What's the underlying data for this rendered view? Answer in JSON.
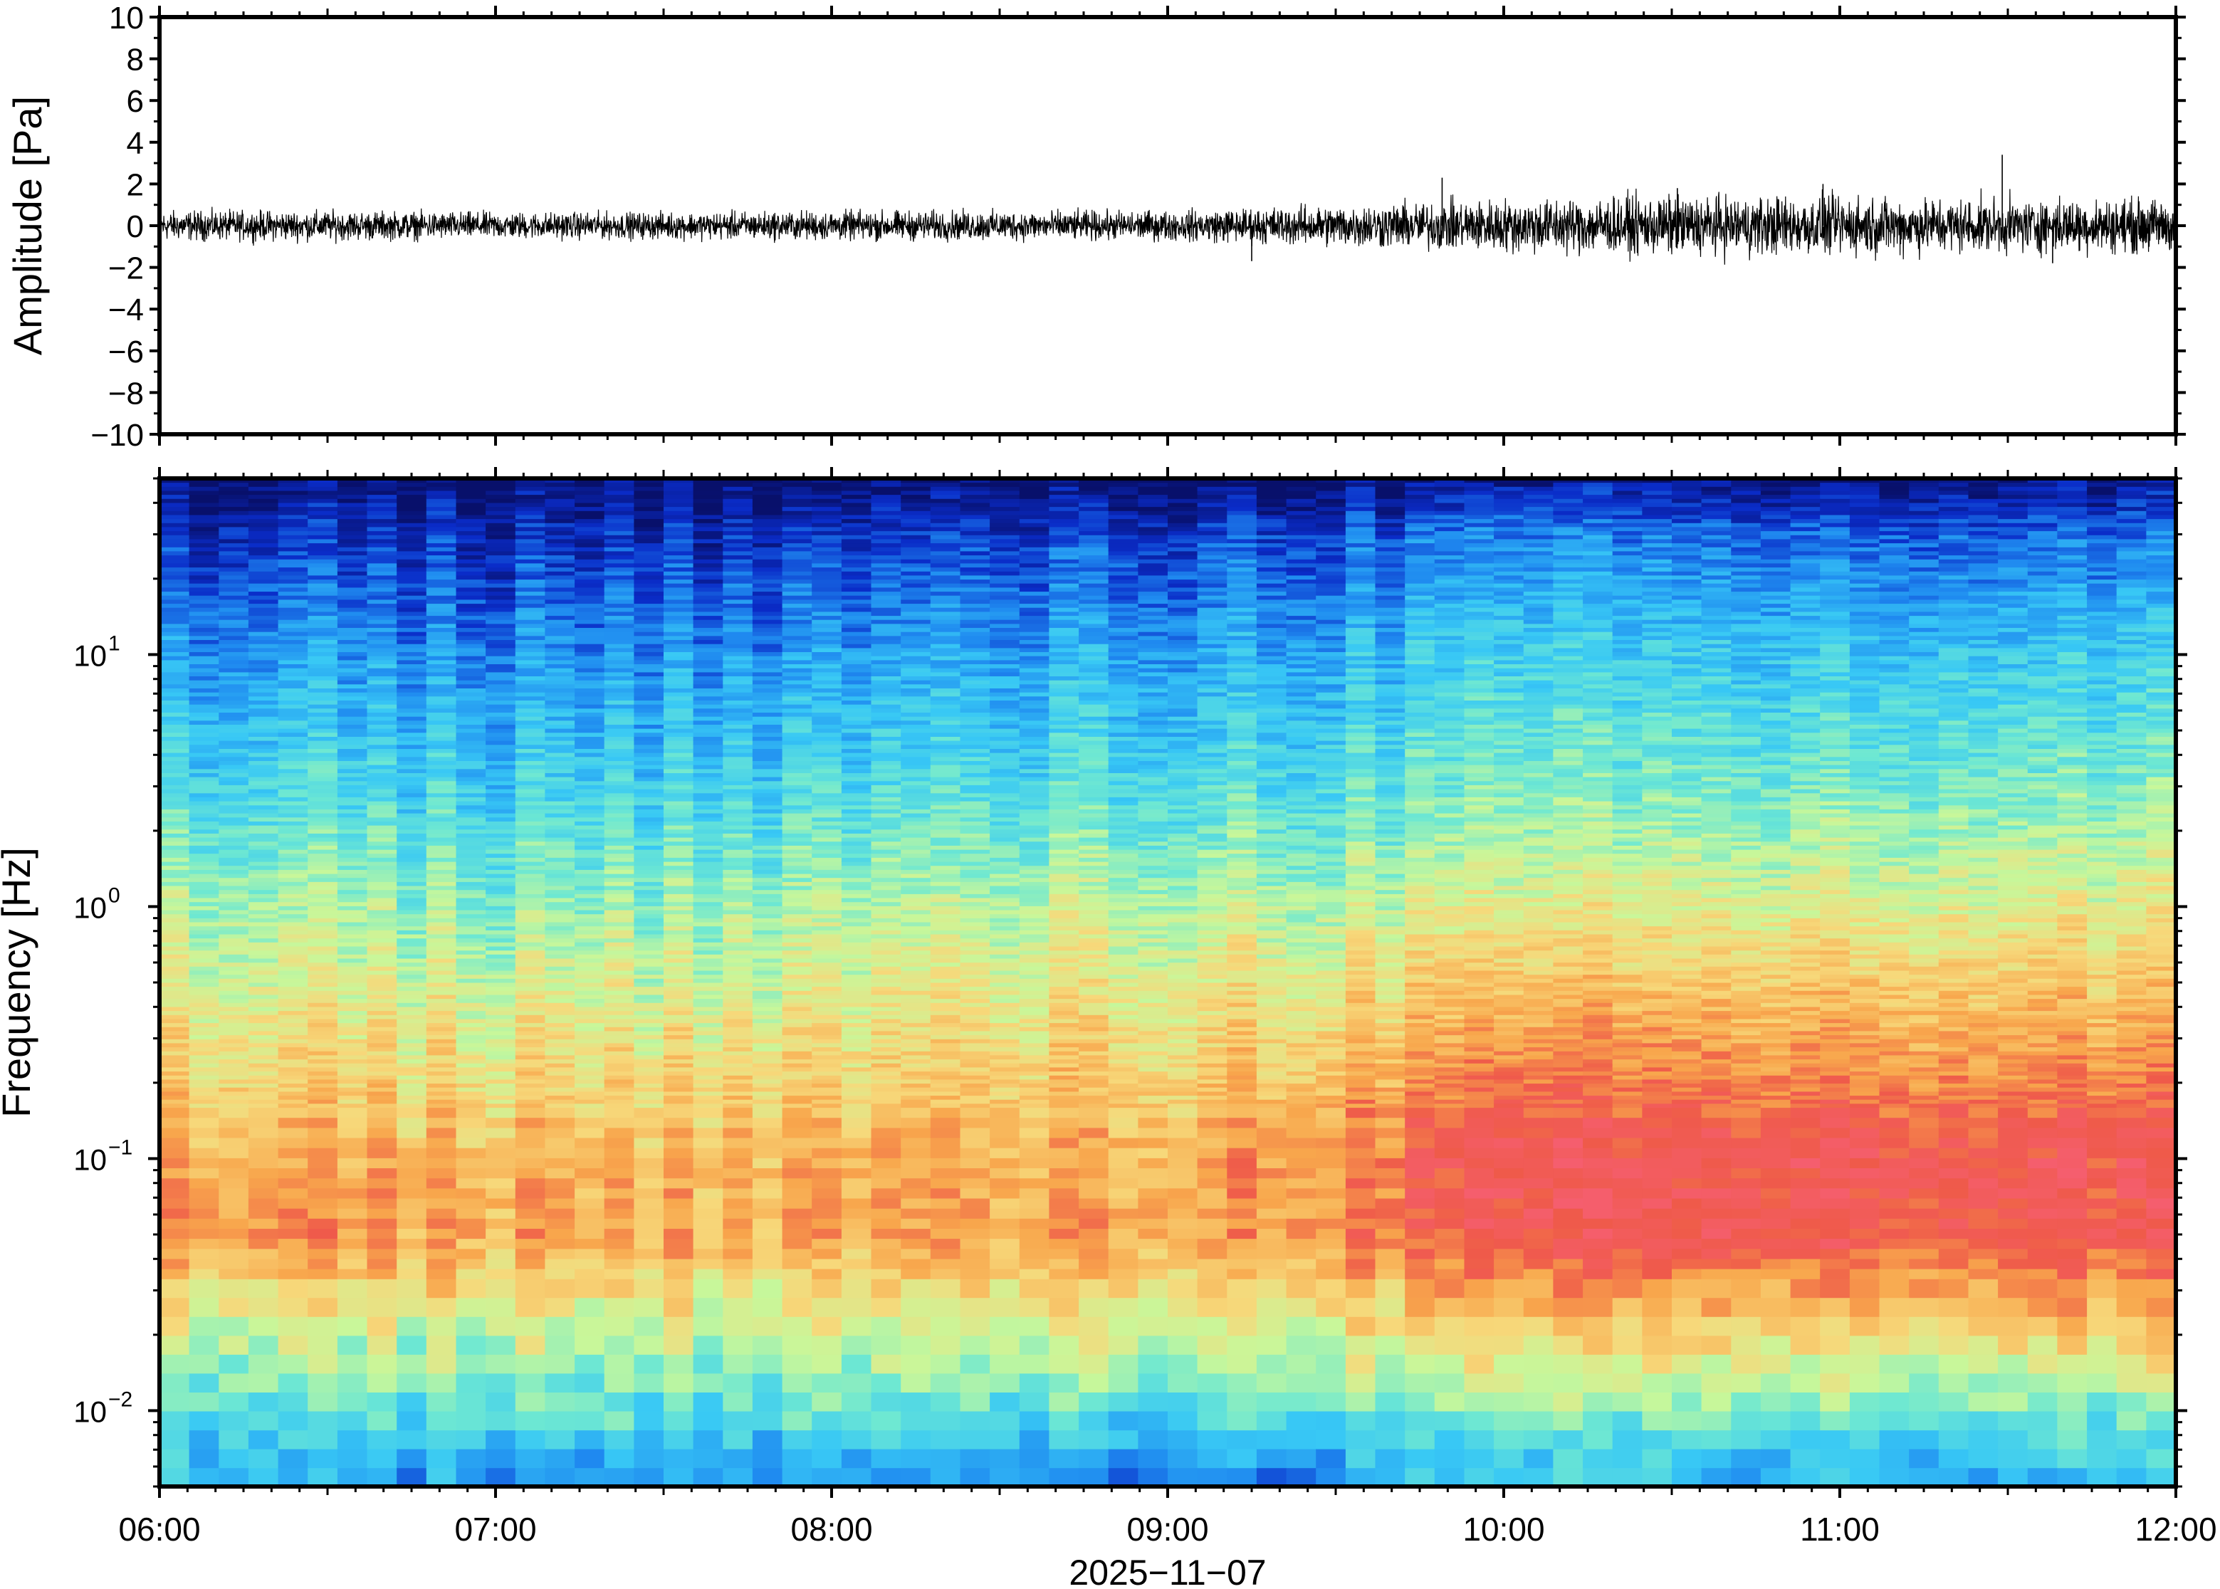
{
  "chart_data": [
    {
      "type": "line",
      "panel": "waveform",
      "ylabel": "Amplitude [Pa]",
      "ylim": [
        -10,
        10
      ],
      "yticks": [
        10,
        8,
        6,
        4,
        2,
        0,
        -2,
        -4,
        -6,
        -8,
        -10
      ],
      "ytick_labels": [
        "10",
        "8",
        "6",
        "4",
        "2",
        "0",
        "−2",
        "−4",
        "−6",
        "−8",
        "−10"
      ],
      "xlim": [
        "06:00",
        "12:00"
      ],
      "line_color": "#000000",
      "envelope": {
        "x": [
          "06:00",
          "06:30",
          "07:00",
          "07:30",
          "08:00",
          "08:30",
          "09:00",
          "09:30",
          "10:00",
          "10:30",
          "11:00",
          "11:30",
          "12:00"
        ],
        "amplitude": [
          0.5,
          0.5,
          0.45,
          0.45,
          0.5,
          0.5,
          0.5,
          0.7,
          0.9,
          1.0,
          1.0,
          0.9,
          0.9
        ]
      },
      "spikes": [
        {
          "x": "09:49",
          "y": 2.3
        },
        {
          "x": "10:31",
          "y": 1.8
        },
        {
          "x": "10:57",
          "y": 2.0
        },
        {
          "x": "11:29",
          "y": 3.4
        },
        {
          "x": "09:15",
          "y": -1.7
        },
        {
          "x": "11:38",
          "y": -1.8
        }
      ]
    },
    {
      "type": "heatmap",
      "panel": "spectrogram",
      "ylabel": "Frequency [Hz]",
      "yscale": "log",
      "ylim": [
        0.005,
        50
      ],
      "yticks": [
        0.01,
        0.1,
        1,
        10
      ],
      "ytick_labels": [
        {
          "base": "10",
          "exp": "−2"
        },
        {
          "base": "10",
          "exp": "−1"
        },
        {
          "base": "10",
          "exp": "0"
        },
        {
          "base": "10",
          "exp": "1"
        }
      ],
      "xlabel": "2025−11−07",
      "xlim": [
        "06:00",
        "12:00"
      ],
      "xtick_labels": [
        "06:00",
        "07:00",
        "08:00",
        "09:00",
        "10:00",
        "11:00",
        "12:00"
      ],
      "colormap": [
        "#08106b",
        "#0a2cc8",
        "#1f8af0",
        "#38c8f5",
        "#6ee8d2",
        "#c8f79a",
        "#f7d87a",
        "#f8a64c",
        "#ef5a4a",
        "#f55e6e"
      ],
      "intensity_profile": {
        "time": [
          "06:00",
          "07:00",
          "08:00",
          "09:00",
          "10:00",
          "11:00",
          "12:00"
        ],
        "freq": [
          0.006,
          0.01,
          0.02,
          0.05,
          0.1,
          0.3,
          1,
          3,
          10,
          30,
          50
        ],
        "level": [
          [
            0.3,
            0.42,
            0.55,
            0.8,
            0.75,
            0.64,
            0.52,
            0.38,
            0.25,
            0.1,
            0.0
          ],
          [
            0.28,
            0.42,
            0.56,
            0.78,
            0.74,
            0.63,
            0.5,
            0.36,
            0.24,
            0.1,
            0.0
          ],
          [
            0.28,
            0.42,
            0.56,
            0.76,
            0.74,
            0.64,
            0.52,
            0.38,
            0.26,
            0.11,
            0.0
          ],
          [
            0.22,
            0.4,
            0.58,
            0.77,
            0.76,
            0.66,
            0.55,
            0.4,
            0.28,
            0.14,
            0.0
          ],
          [
            0.32,
            0.48,
            0.66,
            0.9,
            0.92,
            0.76,
            0.58,
            0.44,
            0.34,
            0.2,
            0.02
          ],
          [
            0.3,
            0.46,
            0.66,
            0.92,
            0.94,
            0.78,
            0.6,
            0.46,
            0.34,
            0.18,
            0.02
          ],
          [
            0.32,
            0.46,
            0.68,
            0.92,
            0.92,
            0.76,
            0.6,
            0.46,
            0.34,
            0.18,
            0.02
          ]
        ]
      }
    }
  ]
}
